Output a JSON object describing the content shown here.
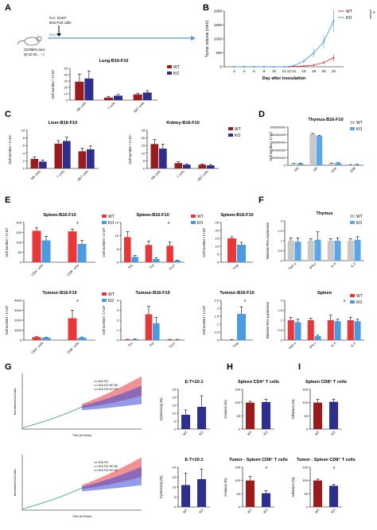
{
  "panel_labels": [
    "A",
    "B",
    "C",
    "D",
    "E",
    "F",
    "G",
    "H",
    "I"
  ],
  "colors": {
    "wt_red": "#e8373a",
    "ko_blue": "#4a9be0",
    "wt_darkred": "#9a1b1b",
    "ko_navy": "#2e2e8f",
    "wt_gray": "#c8c8c8",
    "ko_lightblue": "#5aa6e6"
  },
  "schematic": {
    "injection_label_1": "S.C. 5x10⁵",
    "injection_label_2": "B16-F10 cells",
    "mouse_label_1": "C57Bl/6 mice",
    "mouse_label_2": "(8-10 W.., ♀)",
    "day0_label": "Day 0"
  },
  "chart_data": [
    {
      "id": "B",
      "type": "line",
      "title": "",
      "xlabel": "Day after inoculation",
      "ylabel": "Tumor volume (mm³)",
      "x": [
        2,
        4,
        6,
        8,
        10,
        12,
        13,
        14,
        16,
        18,
        20,
        22
      ],
      "ylim": [
        0,
        2000
      ],
      "yticks": [
        0,
        500,
        1000,
        1500,
        2000
      ],
      "series": [
        {
          "name": "WT",
          "values": [
            0,
            0,
            0,
            0,
            0,
            0,
            0,
            10,
            25,
            60,
            150,
            320
          ],
          "err": [
            0,
            0,
            0,
            0,
            0,
            0,
            0,
            5,
            10,
            20,
            60,
            120
          ]
        },
        {
          "name": "KO",
          "values": [
            0,
            0,
            0,
            0,
            0,
            0,
            10,
            40,
            200,
            500,
            900,
            1650
          ],
          "err": [
            0,
            0,
            0,
            0,
            0,
            0,
            5,
            20,
            80,
            150,
            250,
            400
          ]
        }
      ],
      "annotation": "*"
    },
    {
      "id": "A_lung",
      "type": "bar",
      "title": "Lung-B16-F10",
      "ylabel": "Cell number / 1×10⁵",
      "categories": [
        "NK cells",
        "T cells",
        "NKT cells"
      ],
      "ylim": [
        0,
        50
      ],
      "yticks": [
        0,
        10,
        20,
        30,
        40,
        50
      ],
      "series": [
        {
          "name": "WT",
          "values": [
            29,
            4,
            9
          ],
          "err": [
            12,
            2,
            2
          ]
        },
        {
          "name": "KO",
          "values": [
            34,
            7,
            12
          ],
          "err": [
            12,
            2,
            3
          ]
        }
      ]
    },
    {
      "id": "C_liver",
      "type": "bar",
      "title": "Liver-B16-F10",
      "ylabel": "Cell number / 1×10⁵",
      "categories": [
        "NK cells",
        "T cells",
        "NKT cells"
      ],
      "ylim": [
        0,
        10
      ],
      "yticks": [
        0,
        2,
        4,
        6,
        8,
        10
      ],
      "series": [
        {
          "name": "WT",
          "values": [
            2.5,
            6.5,
            4.5
          ],
          "err": [
            0.5,
            0.8,
            0.8
          ]
        },
        {
          "name": "KO",
          "values": [
            1.8,
            7.2,
            5.0
          ],
          "err": [
            0.4,
            1.0,
            0.9
          ]
        }
      ]
    },
    {
      "id": "C_kidney",
      "type": "bar",
      "title": "Kidney-B16-F10",
      "ylabel": "Cell number / 1×10⁴",
      "categories": [
        "NK cells",
        "T cells",
        "NKT cells"
      ],
      "ylim": [
        0,
        25
      ],
      "yticks": [
        0,
        5,
        10,
        15,
        20,
        25
      ],
      "series": [
        {
          "name": "WT",
          "values": [
            16,
            3.5,
            2.5
          ],
          "err": [
            3,
            0.8,
            0.5
          ]
        },
        {
          "name": "KO",
          "values": [
            13,
            2.5,
            2.0
          ],
          "err": [
            3,
            0.5,
            0.5
          ]
        }
      ]
    },
    {
      "id": "D_thymus",
      "type": "bar",
      "title": "Thymus-B16-F10",
      "ylabel": "Cell number / 1×10⁶",
      "categories": [
        "DN",
        "DP",
        "CD4",
        "CD8"
      ],
      "ylim": [
        0,
        100000000
      ],
      "yticks": [
        0,
        20000000,
        40000000,
        60000000,
        80000000,
        100000000
      ],
      "ytick_labels": [
        "0",
        "20000000",
        "40000000",
        "60000000",
        "80000000",
        "100000000"
      ],
      "series": [
        {
          "name": "WT",
          "values": [
            4000000,
            82000000,
            5000000,
            1500000
          ],
          "err": [
            500000,
            1500000,
            800000,
            300000
          ]
        },
        {
          "name": "KO",
          "values": [
            4500000,
            77000000,
            6000000,
            2000000
          ],
          "err": [
            600000,
            1500000,
            900000,
            400000
          ]
        }
      ]
    },
    {
      "id": "E_spleen_cd",
      "type": "bar",
      "title": "Spleen-B16-F10",
      "ylabel": "Cell number / 1×10⁶",
      "categories": [
        "CD4⁺ cells",
        "CD8⁺ cells"
      ],
      "ylim": [
        0,
        200
      ],
      "yticks": [
        0,
        50,
        100,
        150,
        200
      ],
      "series": [
        {
          "name": "WT",
          "values": [
            158,
            155
          ],
          "err": [
            15,
            12
          ]
        },
        {
          "name": "KO",
          "values": [
            110,
            92
          ],
          "err": [
            20,
            18
          ]
        }
      ],
      "annotation": "*"
    },
    {
      "id": "E_spleen_th",
      "type": "bar",
      "title": "Spleen-B16-F10",
      "ylabel": "Cell number / 1×10³",
      "categories": [
        "Th1",
        "Th2",
        "Th17"
      ],
      "ylim": [
        0,
        15
      ],
      "yticks": [
        0,
        5,
        10,
        15
      ],
      "series": [
        {
          "name": "WT",
          "values": [
            9.5,
            6.5,
            6.2
          ],
          "err": [
            2,
            1.5,
            1.5
          ]
        },
        {
          "name": "KO",
          "values": [
            2.0,
            1.2,
            0.6
          ],
          "err": [
            0.5,
            0.4,
            0.2
          ]
        }
      ],
      "annotation": "*"
    },
    {
      "id": "E_spleen_treg",
      "type": "bar",
      "title": "Spleen-B16-F10",
      "ylabel": "Cell number / 1×10³",
      "categories": [
        "Treg"
      ],
      "ylim": [
        0,
        25
      ],
      "yticks": [
        0,
        5,
        10,
        15,
        20,
        25
      ],
      "series": [
        {
          "name": "WT",
          "values": [
            15
          ],
          "err": [
            1
          ]
        },
        {
          "name": "KO",
          "values": [
            11
          ],
          "err": [
            1.5
          ]
        }
      ]
    },
    {
      "id": "E_tumour_cd",
      "type": "bar",
      "title": "Tumour-B16-F10",
      "ylabel": "Cell number / 1×10³",
      "categories": [
        "CD4⁺ cells",
        "CD8⁺ cells"
      ],
      "ylim": [
        0,
        4000
      ],
      "yticks": [
        0,
        1000,
        2000,
        3000,
        4000
      ],
      "series": [
        {
          "name": "WT",
          "values": [
            300,
            2200
          ],
          "err": [
            50,
            800
          ]
        },
        {
          "name": "KO",
          "values": [
            250,
            250
          ],
          "err": [
            40,
            60
          ]
        }
      ],
      "annotation": "*"
    },
    {
      "id": "E_tumour_th",
      "type": "bar",
      "title": "Tumour-B16-F10",
      "ylabel": "Cell number / 1×10³",
      "categories": [
        "Th1",
        "Th2",
        "Th17"
      ],
      "ylim": [
        0,
        4
      ],
      "yticks": [
        0,
        1,
        2,
        3,
        4
      ],
      "series": [
        {
          "name": "WT",
          "values": [
            0.05,
            2.6,
            0.05
          ],
          "err": [
            0.02,
            0.8,
            0.02
          ]
        },
        {
          "name": "KO",
          "values": [
            0.08,
            1.7,
            0.05
          ],
          "err": [
            0.02,
            0.6,
            0.02
          ]
        }
      ]
    },
    {
      "id": "E_tumour_treg",
      "type": "bar",
      "title": "Tumour-B16-F10",
      "ylabel": "Cell number / 1×10³",
      "categories": [
        "Treg"
      ],
      "ylim": [
        0,
        2.5
      ],
      "yticks": [
        0,
        0.5,
        1.0,
        1.5,
        2.0,
        2.5
      ],
      "series": [
        {
          "name": "WT",
          "values": [
            0.02
          ],
          "err": [
            0.01
          ]
        },
        {
          "name": "KO",
          "values": [
            1.65
          ],
          "err": [
            0.45
          ]
        }
      ],
      "annotation": "*"
    },
    {
      "id": "F_thymus",
      "type": "bar",
      "title": "Thymus",
      "ylabel": "Relative RNA expression",
      "categories": [
        "TNF-α",
        "IFN-γ",
        "IL-4",
        "IL-2"
      ],
      "ylim": [
        0,
        2.0
      ],
      "yticks": [
        0,
        0.5,
        1.0,
        1.5,
        2.0
      ],
      "series": [
        {
          "name": "WT",
          "values": [
            1.0,
            1.0,
            1.0,
            1.0
          ],
          "err": [
            0.15,
            0.1,
            0.1,
            0.1
          ]
        },
        {
          "name": "KO",
          "values": [
            0.95,
            1.05,
            1.0,
            1.05
          ],
          "err": [
            0.2,
            0.4,
            0.15,
            0.15
          ]
        }
      ]
    },
    {
      "id": "F_spleen",
      "type": "bar",
      "title": "Spleen",
      "ylabel": "Relative RNA expression",
      "categories": [
        "TNF-α",
        "IFN-γ",
        "IL-4",
        "IL-2"
      ],
      "ylim": [
        0,
        2.0
      ],
      "yticks": [
        0,
        0.5,
        1.0,
        1.5,
        2.0
      ],
      "series": [
        {
          "name": "WT",
          "values": [
            1.0,
            1.0,
            1.0,
            1.0
          ],
          "err": [
            0.15,
            0.1,
            0.25,
            0.15
          ]
        },
        {
          "name": "KO",
          "values": [
            0.9,
            0.2,
            0.95,
            0.95
          ],
          "err": [
            0.15,
            0.05,
            0.1,
            0.1
          ]
        }
      ],
      "annotation": "*"
    },
    {
      "id": "G_cyto_1",
      "type": "bar",
      "title": "E:T=10:1",
      "ylabel": "Cytotoxicity (%)",
      "categories": [
        "WT",
        "KO"
      ],
      "ylim": [
        0,
        25
      ],
      "yticks": [
        0,
        5,
        10,
        15,
        20,
        25
      ],
      "series": [
        {
          "name": "",
          "values": [
            9,
            14
          ],
          "err": [
            3,
            7
          ]
        }
      ]
    },
    {
      "id": "G_cyto_2",
      "type": "bar",
      "title": "E:T=10:1",
      "ylabel": "Cytotoxicity (%)",
      "categories": [
        "WT",
        "KO"
      ],
      "ylim": [
        0,
        20
      ],
      "yticks": [
        0,
        5,
        10,
        15,
        20
      ],
      "series": [
        {
          "name": "",
          "values": [
            11,
            14
          ],
          "err": [
            6,
            5
          ]
        }
      ]
    },
    {
      "id": "H_spleen",
      "type": "bar",
      "title": "Spleen CD4⁺ T cells",
      "ylabel": "Invasion (%)",
      "categories": [
        "WT",
        "KO"
      ],
      "ylim": [
        0,
        150
      ],
      "yticks": [
        0,
        50,
        100,
        150
      ],
      "series": [
        {
          "name": "",
          "values": [
            100,
            102
          ],
          "err": [
            5,
            10
          ]
        }
      ]
    },
    {
      "id": "H_tumor",
      "type": "bar",
      "title": "Tumor - Spleen CD8⁺ T cells",
      "ylabel": "Invasion (%)",
      "categories": [
        "WT",
        "KO"
      ],
      "ylim": [
        0,
        150
      ],
      "yticks": [
        0,
        50,
        100,
        150
      ],
      "series": [
        {
          "name": "",
          "values": [
            100,
            52
          ],
          "err": [
            15,
            10
          ]
        }
      ],
      "annotation": "*"
    },
    {
      "id": "I_spleen",
      "type": "bar",
      "title": "Spleen CD8⁺ T cells",
      "ylabel": "Adhesion (%)",
      "categories": [
        "WT",
        "KO"
      ],
      "ylim": [
        0,
        150
      ],
      "yticks": [
        0,
        50,
        100,
        150
      ],
      "series": [
        {
          "name": "",
          "values": [
            100,
            103
          ],
          "err": [
            12,
            10
          ]
        }
      ]
    },
    {
      "id": "I_tumor",
      "type": "bar",
      "title": "Tumor - Spleen CD8⁺ T cells",
      "ylabel": "Adhesion (%)",
      "categories": [
        "WT",
        "KO"
      ],
      "ylim": [
        0,
        150
      ],
      "yticks": [
        0,
        50,
        100,
        150
      ],
      "series": [
        {
          "name": "",
          "values": [
            100,
            80
          ],
          "err": [
            5,
            5
          ]
        }
      ],
      "annotation": "*"
    },
    {
      "id": "G_trace_1",
      "type": "line",
      "title": "",
      "xlabel": "Time (in Hours)",
      "ylabel": "Normalized Cell Index",
      "legend": [
        "B16-F10",
        "B16-F10+WT NK",
        "B16-F10+KO NK"
      ]
    },
    {
      "id": "G_trace_2",
      "type": "line",
      "title": "",
      "xlabel": "Time (in Hours)",
      "ylabel": "Normalized Cell Index",
      "legend": [
        "B16-F10",
        "B16-F10+WT NK",
        "B16-F10+KO NK"
      ]
    }
  ]
}
